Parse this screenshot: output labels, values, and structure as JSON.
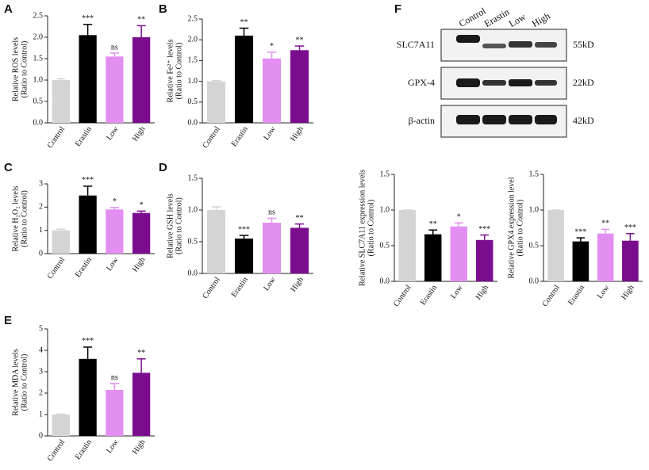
{
  "chart_data": [
    {
      "type": "bar",
      "panel": "A",
      "ylabel": [
        "Relative ROS levels",
        "(Ratio to Control)"
      ],
      "categories": [
        "Control",
        "Erastin",
        "Low",
        "High"
      ],
      "colors": [
        "#d4d4d4",
        "#000000",
        "#e38ff2",
        "#7a0d8e"
      ],
      "values": [
        1.0,
        2.05,
        1.55,
        2.0
      ],
      "errors": [
        0.03,
        0.25,
        0.08,
        0.27
      ],
      "annotations": [
        null,
        "***",
        "ns",
        "**"
      ],
      "ylim": [
        0,
        2.5
      ],
      "yticks": [
        {
          "value": 0,
          "label": "0.0"
        },
        0.5,
        {
          "value": 1,
          "label": "1.0"
        },
        1.5,
        {
          "value": 2,
          "label": "2.0"
        },
        2.5
      ]
    },
    {
      "type": "bar",
      "panel": "B",
      "ylabel": [
        "Relative Fe²⁺ levels",
        "(Ratio to Control)"
      ],
      "categories": [
        "Control",
        "Erastin",
        "Low",
        "High"
      ],
      "colors": [
        "#d4d4d4",
        "#000000",
        "#e38ff2",
        "#7a0d8e"
      ],
      "values": [
        1.0,
        2.1,
        1.55,
        1.75
      ],
      "errors": [
        0.02,
        0.18,
        0.15,
        0.1
      ],
      "annotations": [
        null,
        "**",
        "*",
        "**"
      ],
      "ylim": [
        0,
        2.5
      ],
      "yticks": [
        {
          "value": 0,
          "label": "0.0"
        },
        0.5,
        {
          "value": 1,
          "label": "1.0"
        },
        1.5,
        {
          "value": 2,
          "label": "2.0"
        },
        2.5
      ]
    },
    {
      "type": "bar",
      "panel": "C",
      "ylabel": [
        "Relative H₂O₂ levels",
        "(Ratio to Control)"
      ],
      "categories": [
        "Control",
        "Erastin",
        "Low",
        "High"
      ],
      "colors": [
        "#d4d4d4",
        "#000000",
        "#e38ff2",
        "#7a0d8e"
      ],
      "values": [
        1.0,
        2.5,
        1.9,
        1.75
      ],
      "errors": [
        0.05,
        0.4,
        0.08,
        0.08
      ],
      "annotations": [
        null,
        "***",
        "*",
        "*"
      ],
      "ylim": [
        0,
        3
      ],
      "yticks": [
        0,
        1,
        2,
        3
      ]
    },
    {
      "type": "bar",
      "panel": "D",
      "ylabel": [
        "Relative GSH levels",
        "(Ratio to Control)"
      ],
      "categories": [
        "Control",
        "Erastin",
        "Low",
        "High"
      ],
      "colors": [
        "#d4d4d4",
        "#000000",
        "#e38ff2",
        "#7a0d8e"
      ],
      "values": [
        1.0,
        0.55,
        0.8,
        0.72
      ],
      "errors": [
        0.05,
        0.05,
        0.07,
        0.06
      ],
      "annotations": [
        null,
        "***",
        "ns",
        "**"
      ],
      "ylim": [
        0,
        1.5
      ],
      "yticks": [
        {
          "value": 0,
          "label": "0.0"
        },
        0.5,
        {
          "value": 1,
          "label": "1.0"
        },
        1.5
      ]
    },
    {
      "type": "bar",
      "panel": "E",
      "ylabel": [
        "Relative MDA levels",
        "(Ratio to Control)"
      ],
      "categories": [
        "Control",
        "Erastin",
        "Low",
        "High"
      ],
      "colors": [
        "#d4d4d4",
        "#000000",
        "#e38ff2",
        "#7a0d8e"
      ],
      "values": [
        1.0,
        3.6,
        2.15,
        2.95
      ],
      "errors": [
        0.02,
        0.55,
        0.3,
        0.65
      ],
      "annotations": [
        null,
        "***",
        "ns",
        "**"
      ],
      "ylim": [
        0,
        5
      ],
      "yticks": [
        0,
        1,
        2,
        3,
        4,
        5
      ]
    },
    {
      "type": "bar",
      "ylabel": [
        "Relative SLC7A11 expression levels",
        "(Ratio to Control)"
      ],
      "categories": [
        "Control",
        "Erastin",
        "Low",
        "High"
      ],
      "colors": [
        "#d4d4d4",
        "#000000",
        "#e38ff2",
        "#7a0d8e"
      ],
      "values": [
        1.0,
        0.66,
        0.77,
        0.58
      ],
      "errors": [
        0,
        0.06,
        0.05,
        0.07
      ],
      "annotations": [
        null,
        "**",
        "*",
        "***"
      ],
      "ylim": [
        0,
        1.5
      ],
      "yticks": [
        {
          "value": 0,
          "label": "0.0"
        },
        0.5,
        {
          "value": 1,
          "label": "1.0"
        },
        1.5
      ]
    },
    {
      "type": "bar",
      "ylabel": [
        "Relative GPX4 expression level",
        "(Ratio to Control)"
      ],
      "categories": [
        "Control",
        "Erastin",
        "Low",
        "High"
      ],
      "colors": [
        "#d4d4d4",
        "#000000",
        "#e38ff2",
        "#7a0d8e"
      ],
      "values": [
        1.0,
        0.56,
        0.67,
        0.57
      ],
      "errors": [
        0,
        0.05,
        0.06,
        0.1
      ],
      "annotations": [
        null,
        "***",
        "**",
        "***"
      ],
      "ylim": [
        0,
        1.5
      ],
      "yticks": [
        {
          "value": 0,
          "label": "0.0"
        },
        0.5,
        {
          "value": 1,
          "label": "1.0"
        },
        1.5
      ]
    }
  ],
  "blot": {
    "panel": "F",
    "lanes": [
      "Control",
      "Erastin",
      "Low",
      "High"
    ],
    "rows": [
      {
        "protein": "SLC7A11",
        "size": "55kD"
      },
      {
        "protein": "GPX-4",
        "size": "22kD"
      },
      {
        "protein": "β-actin",
        "size": "42kD"
      }
    ]
  }
}
